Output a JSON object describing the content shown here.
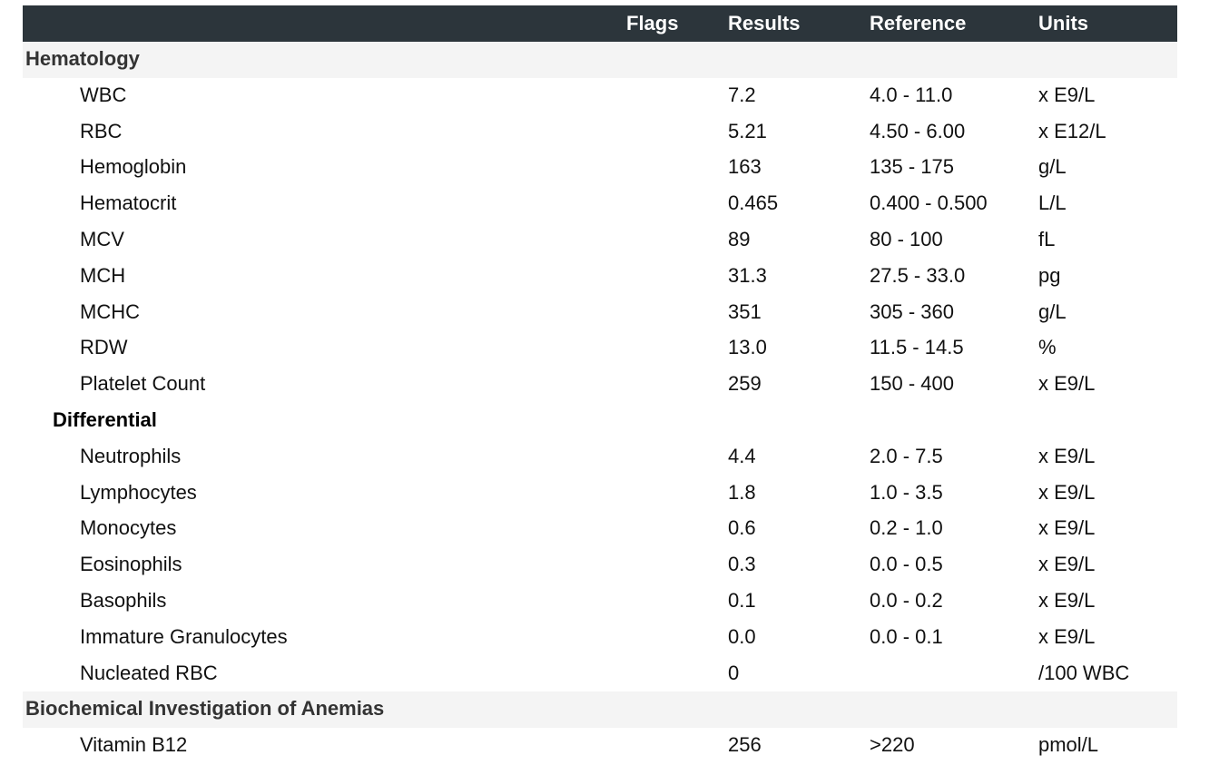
{
  "header": {
    "flags": "Flags",
    "results": "Results",
    "reference": "Reference",
    "units": "Units"
  },
  "sections": {
    "hematology": {
      "title": "Hematology",
      "rows": [
        {
          "name": "WBC",
          "flag": "",
          "result": "7.2",
          "reference": "4.0 - 11.0",
          "units": "x E9/L"
        },
        {
          "name": "RBC",
          "flag": "",
          "result": "5.21",
          "reference": "4.50 - 6.00",
          "units": "x E12/L"
        },
        {
          "name": "Hemoglobin",
          "flag": "",
          "result": "163",
          "reference": "135 - 175",
          "units": "g/L"
        },
        {
          "name": "Hematocrit",
          "flag": "",
          "result": "0.465",
          "reference": "0.400 - 0.500",
          "units": "L/L"
        },
        {
          "name": "MCV",
          "flag": "",
          "result": "89",
          "reference": "80 - 100",
          "units": "fL"
        },
        {
          "name": "MCH",
          "flag": "",
          "result": "31.3",
          "reference": "27.5 - 33.0",
          "units": "pg"
        },
        {
          "name": "MCHC",
          "flag": "",
          "result": "351",
          "reference": "305 - 360",
          "units": "g/L"
        },
        {
          "name": "RDW",
          "flag": "",
          "result": "13.0",
          "reference": "11.5 - 14.5",
          "units": "%"
        },
        {
          "name": "Platelet Count",
          "flag": "",
          "result": "259",
          "reference": "150 - 400",
          "units": "x E9/L"
        }
      ],
      "differential": {
        "title": "Differential",
        "rows": [
          {
            "name": "Neutrophils",
            "flag": "",
            "result": "4.4",
            "reference": "2.0 - 7.5",
            "units": "x E9/L"
          },
          {
            "name": "Lymphocytes",
            "flag": "",
            "result": "1.8",
            "reference": "1.0 - 3.5",
            "units": "x E9/L"
          },
          {
            "name": "Monocytes",
            "flag": "",
            "result": "0.6",
            "reference": "0.2 - 1.0",
            "units": "x E9/L"
          },
          {
            "name": "Eosinophils",
            "flag": "",
            "result": "0.3",
            "reference": "0.0 - 0.5",
            "units": "x E9/L"
          },
          {
            "name": "Basophils",
            "flag": "",
            "result": "0.1",
            "reference": "0.0 - 0.2",
            "units": "x E9/L"
          },
          {
            "name": "Immature Granulocytes",
            "flag": "",
            "result": "0.0",
            "reference": "0.0 - 0.1",
            "units": "x E9/L"
          },
          {
            "name": "Nucleated RBC",
            "flag": "",
            "result": "0",
            "reference": "",
            "units": "/100 WBC"
          }
        ]
      }
    },
    "anemia": {
      "title": "Biochemical Investigation of Anemias",
      "rows": [
        {
          "name": "Vitamin B12",
          "flag": "",
          "result": "256",
          "reference": ">220",
          "units": "pmol/L"
        }
      ]
    }
  }
}
